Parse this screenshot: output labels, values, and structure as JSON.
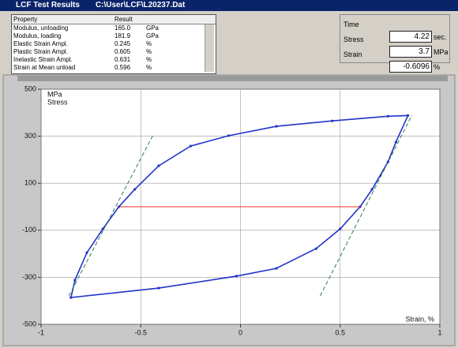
{
  "window": {
    "title": "LCF Test Results",
    "file": "C:\\User\\LCF\\L20237.Dat"
  },
  "results": {
    "header": [
      "Property",
      "Result"
    ],
    "rows": [
      [
        "Modulus, unloading",
        "165.0",
        "GPa"
      ],
      [
        "Modulus, loading",
        "181.9",
        "GPa"
      ],
      [
        "Elastic Strain Ampl.",
        "0.245",
        "%"
      ],
      [
        "Plastic Strain Ampl.",
        "0.605",
        "%"
      ],
      [
        "Inelastic Strain Ampl.",
        "0.631",
        "%"
      ],
      [
        "Strain at Mean unload",
        "0.596",
        "%"
      ]
    ]
  },
  "readouts": [
    [
      "Time",
      "4.22",
      "sec."
    ],
    [
      "Stress",
      "3.7",
      "MPa"
    ],
    [
      "Strain",
      "-0.6096",
      "%"
    ]
  ],
  "chart_data": {
    "type": "line",
    "y_unit": "MPa",
    "y_label": "Stress",
    "x_label": "Strain, %",
    "xlim": [
      -1,
      1
    ],
    "ylim": [
      -500,
      500
    ],
    "xticks": [
      -1,
      -0.5,
      0,
      0.5,
      1
    ],
    "yticks": [
      500,
      300,
      100,
      -100,
      -300,
      -500
    ],
    "grid": true,
    "series": [
      {
        "color": "#2233c8",
        "line_style": "dotted-markers",
        "x": [
          -0.85,
          -0.83,
          -0.77,
          -0.69,
          -0.61,
          -0.53,
          -0.41,
          -0.25,
          -0.06,
          0.18,
          0.46,
          0.74,
          0.84,
          0.78,
          0.74,
          0.66,
          0.6,
          0.5,
          0.38,
          0.18,
          -0.02,
          -0.41,
          -0.85
        ],
        "values": [
          -386,
          -312,
          -195,
          -94,
          0,
          74,
          174,
          258,
          302,
          342,
          365,
          385,
          388,
          275,
          191,
          74,
          0,
          -94,
          -178,
          -262,
          -295,
          -346,
          -386
        ]
      },
      {
        "color": "#2e7d4f",
        "line_style": "dashed",
        "x": [
          -0.86,
          -0.44
        ],
        "values": [
          -379,
          302
        ]
      },
      {
        "color": "#2e7d4f",
        "line_style": "dashed",
        "x": [
          0.4,
          0.86
        ],
        "values": [
          -379,
          389
        ]
      },
      {
        "color": "#e83030",
        "line_style": "solid",
        "x": [
          -0.61,
          0.6
        ],
        "values": [
          0,
          0
        ]
      }
    ]
  }
}
